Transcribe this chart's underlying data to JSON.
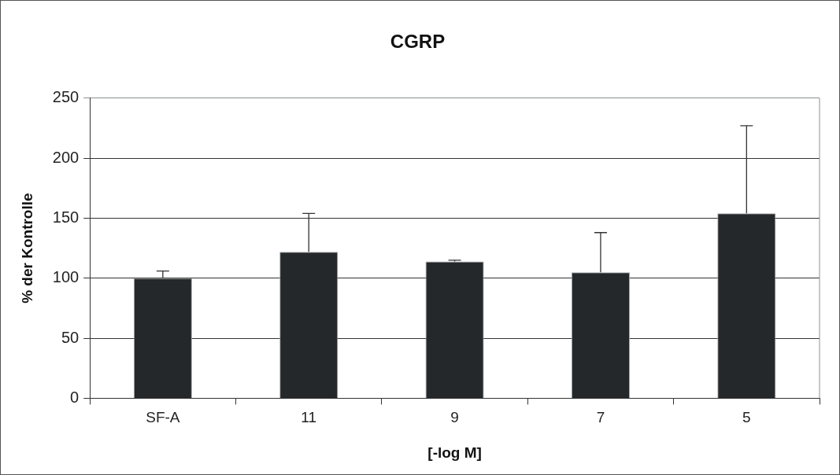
{
  "chart_data": {
    "type": "bar",
    "title": "CGRP",
    "xlabel": "[-log M]",
    "ylabel": "% der Kontrolle",
    "categories": [
      "SF-A",
      "11",
      "9",
      "7",
      "5"
    ],
    "values": [
      100,
      122,
      114,
      105,
      154
    ],
    "errors": [
      [
        100,
        106
      ],
      [
        122,
        154
      ],
      [
        114,
        115
      ],
      [
        105,
        138
      ],
      [
        154,
        227
      ]
    ],
    "color": "#24282a",
    "ylim": [
      0,
      250
    ],
    "yticks": [
      0,
      50,
      100,
      150,
      200,
      250
    ],
    "grid": "y"
  }
}
